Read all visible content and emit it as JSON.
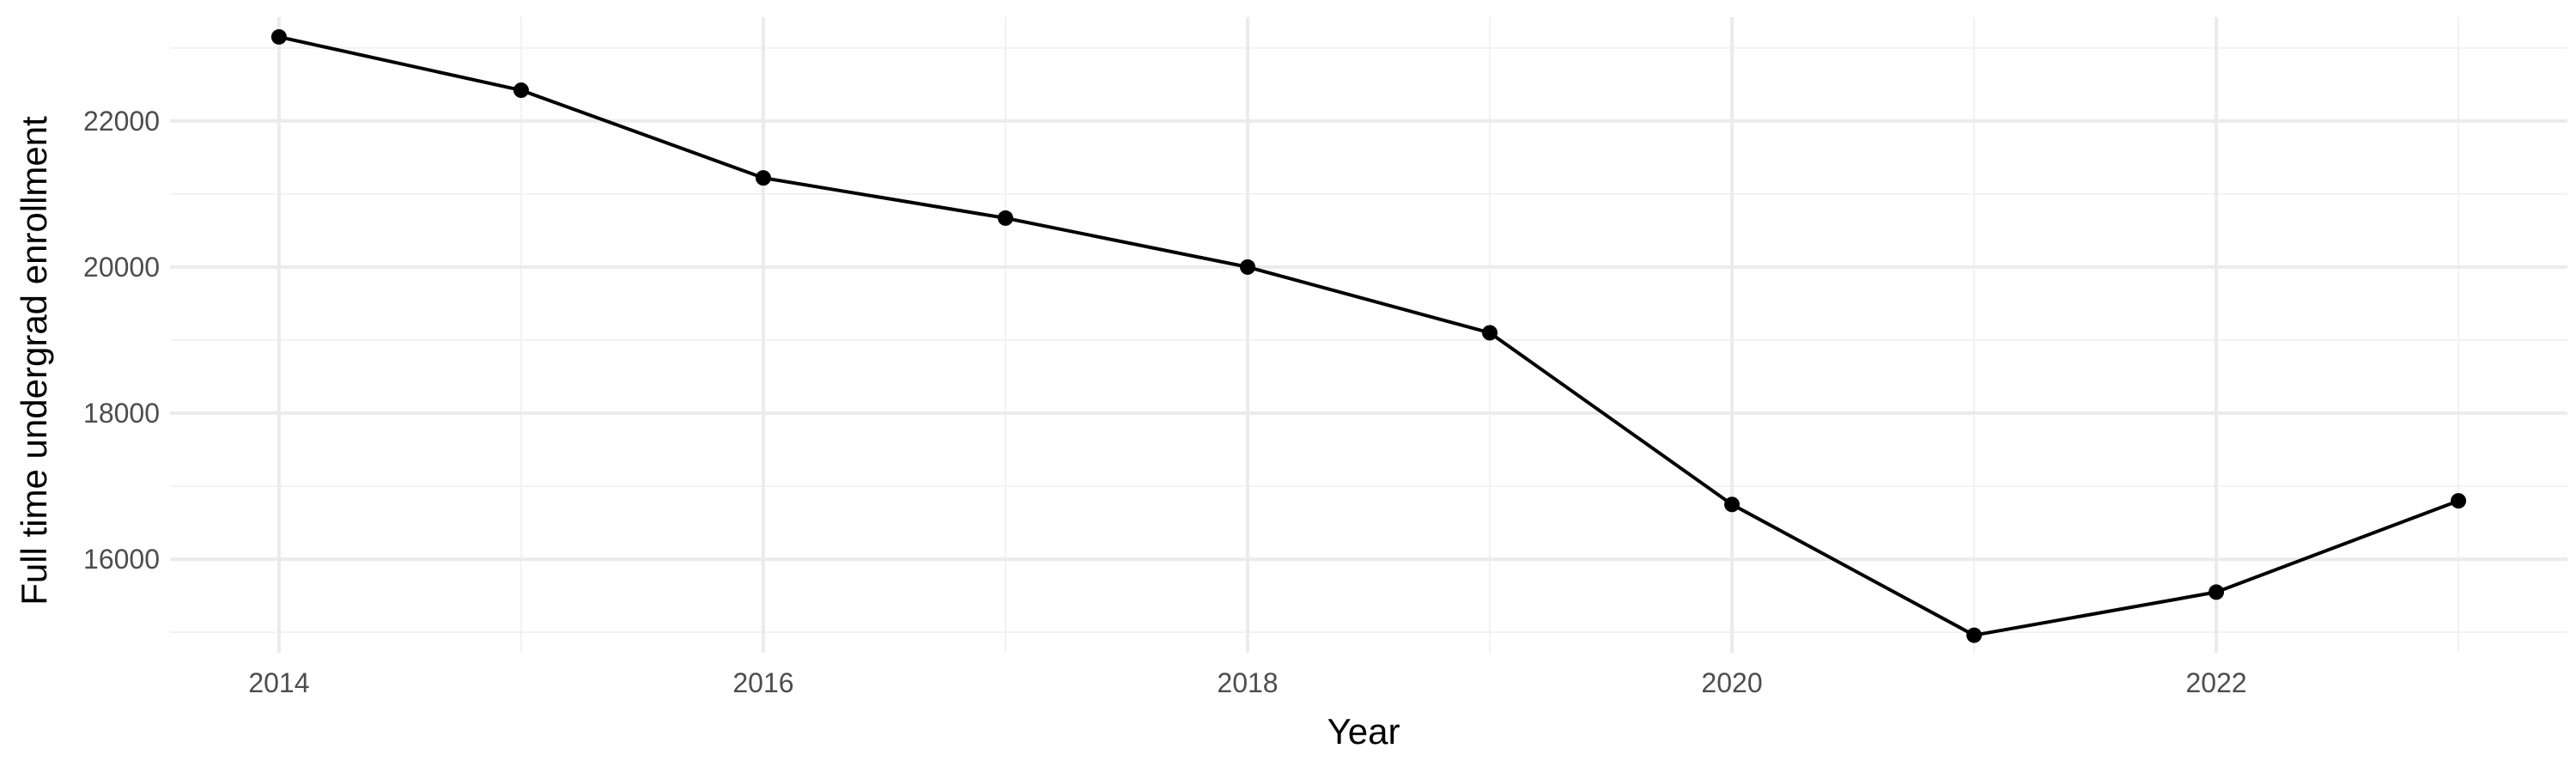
{
  "chart_data": {
    "type": "line",
    "xlabel": "Year",
    "ylabel": "Full time undergrad enrollment",
    "x": [
      2014,
      2015,
      2016,
      2017,
      2018,
      2019,
      2020,
      2021,
      2022,
      2023
    ],
    "series": [
      {
        "values": [
          23150,
          22420,
          21220,
          20670,
          20000,
          19100,
          16750,
          14960,
          15550,
          16800
        ]
      }
    ],
    "xlim": [
      2013.55,
      2023.45
    ],
    "ylim": [
      14720,
      23420
    ],
    "x_ticks": [
      2014,
      2016,
      2018,
      2020,
      2022
    ],
    "x_tick_labels": [
      "2014",
      "2016",
      "2018",
      "2020",
      "2022"
    ],
    "x_minor_ticks": [
      2015,
      2017,
      2019,
      2021,
      2023
    ],
    "y_ticks": [
      16000,
      18000,
      20000,
      22000
    ],
    "y_tick_labels": [
      "16000",
      "18000",
      "20000",
      "22000"
    ],
    "y_minor_ticks": [
      15000,
      17000,
      19000,
      21000,
      23000
    ],
    "grid": true,
    "legend": "none",
    "line_color": "#000000",
    "background_color": "#ffffff",
    "grid_color": "#ebebeb"
  }
}
